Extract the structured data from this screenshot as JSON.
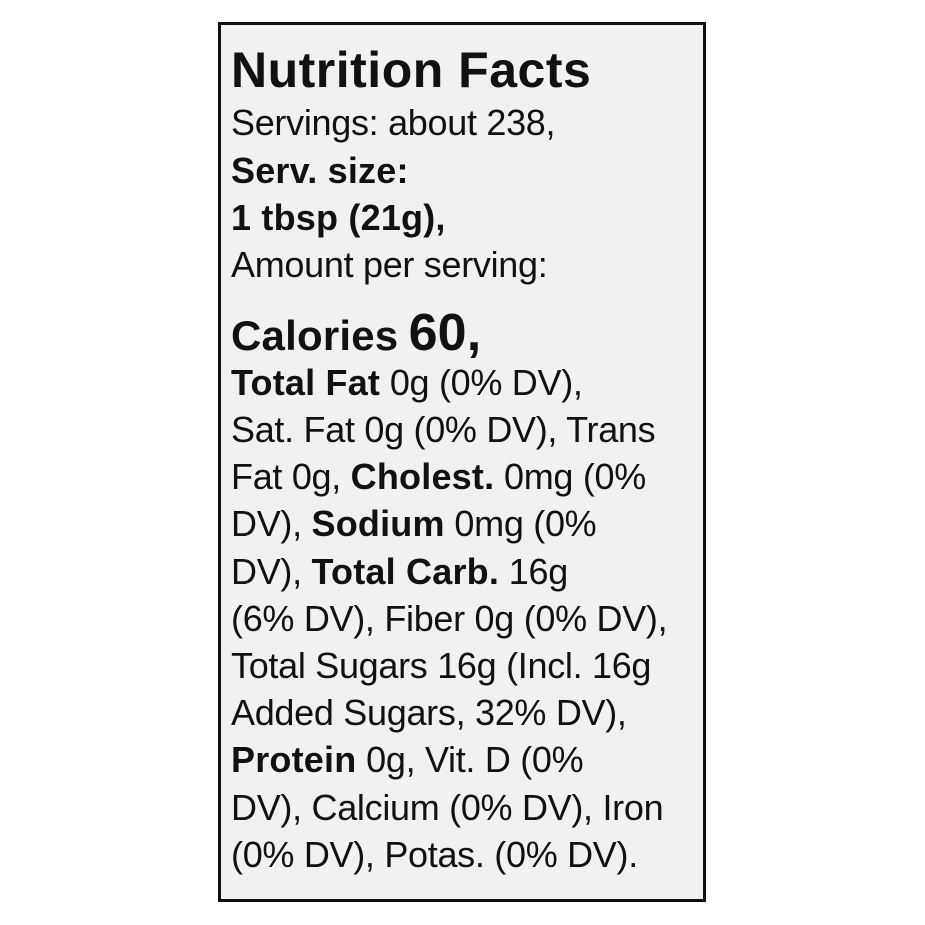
{
  "title": "Nutrition Facts",
  "lines": [
    [
      "Servings: about 238,"
    ],
    [
      "Serv. size:"
    ],
    [
      "1 tbsp (21g),"
    ],
    [
      "Amount per serving:"
    ],
    [
      "Calories",
      "60,"
    ],
    [
      "Total Fat",
      "0g (0% DV),"
    ],
    [
      "Sat. Fat 0g (0% DV), Trans"
    ],
    [
      "Fat 0g,",
      "Cholest.",
      "0mg (0%"
    ],
    [
      "DV),",
      "Sodium",
      "0mg (0%"
    ],
    [
      "DV),",
      "Total Carb.",
      "16g"
    ],
    [
      "(6% DV), Fiber 0g (0% DV),"
    ],
    [
      "Total Sugars 16g (Incl. 16g"
    ],
    [
      "Added Sugars, 32% DV),"
    ],
    [
      "Protein",
      "0g, Vit. D (0%"
    ],
    [
      "DV), Calcium (0% DV), Iron"
    ],
    [
      "(0% DV), Potas. (0% DV)."
    ]
  ]
}
